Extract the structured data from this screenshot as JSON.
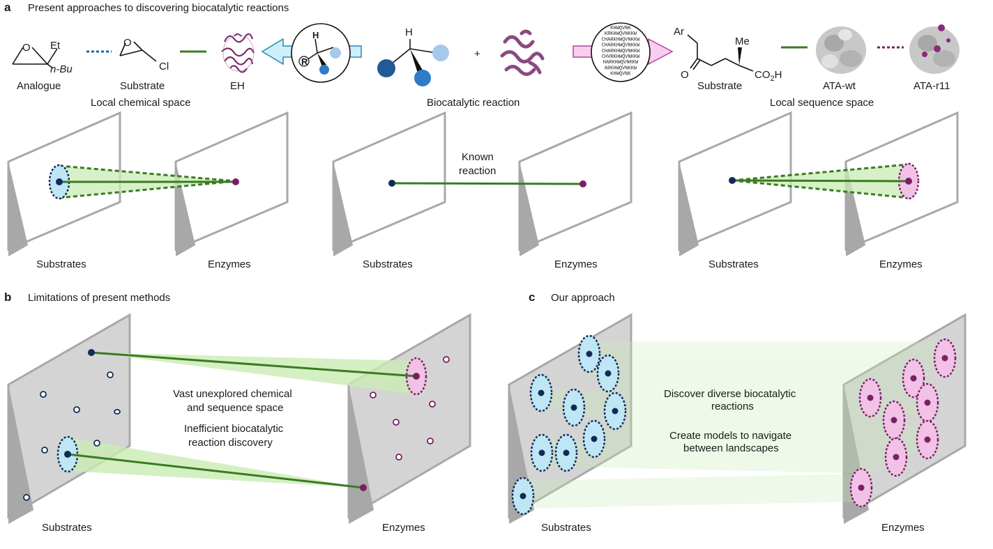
{
  "colors": {
    "green": "#3a7a23",
    "blue_dark": "#0f2c57",
    "blue_light_fill": "#bfe6f5",
    "purple": "#7a1f66",
    "pink_fill": "#f2c2e6",
    "panel_gray": "#d4d4d4",
    "frame_gray": "#a8a8a8",
    "cone_green": "#c9ecb4"
  },
  "panel_a": {
    "letter": "a",
    "title": "Present approaches to discovering biocatalytic reactions",
    "analogue_label": "Analogue",
    "analogue_et": "Et",
    "analogue_nbu": "n-Bu",
    "substrate_left_label": "Substrate",
    "substrate_cl": "Cl",
    "substrate_o": "O",
    "eh_label": "EH",
    "hydrogen": "H",
    "r_group": "R",
    "plus": "+",
    "ar": "Ar",
    "me": "Me",
    "co2h": "CO2H",
    "carbonyl_o": "O",
    "substrate_right_label": "Substrate",
    "ata_wt_label": "ATA-wt",
    "ata_r11_label": "ATA-r11",
    "local_chemical_space": "Local chemical space",
    "biocatalytic_reaction": "Biocatalytic reaction",
    "local_sequence_space": "Local sequence space",
    "known_reaction_line1": "Known",
    "known_reaction_line2": "reaction",
    "substrates_label": "Substrates",
    "enzymes_label": "Enzymes",
    "sequence_rows": [
      "KHWQVNK",
      "KRKHWQVNKKW",
      "CHARKHWQVNKKW",
      "CHARKHWQVNKKW",
      "CHARKHWQVNKKW",
      "CHVRKHWQVNKKW",
      "HARKHWQVNKKW",
      "ARKHWQVNKKW",
      "KHWQVNK"
    ]
  },
  "panel_b": {
    "letter": "b",
    "title": "Limitations of present methods",
    "text1_line1": "Vast unexplored chemical",
    "text1_line2": "and sequence space",
    "text2_line1": "Inefficient biocatalytic",
    "text2_line2": "reaction discovery",
    "substrates_label": "Substrates",
    "enzymes_label": "Enzymes"
  },
  "panel_c": {
    "letter": "c",
    "title": "Our approach",
    "text1_line1": "Discover diverse biocatalytic",
    "text1_line2": "reactions",
    "text2_line1": "Create models to navigate",
    "text2_line2": "between landscapes",
    "substrates_label": "Substrates",
    "enzymes_label": "Enzymes"
  }
}
